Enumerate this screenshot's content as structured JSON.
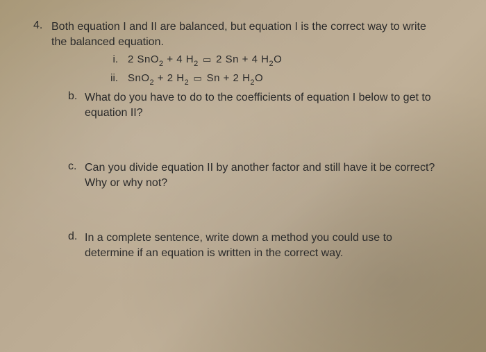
{
  "question": {
    "number": "4.",
    "intro": "Both equation I and II are balanced, but equation I is the correct way to write the balanced equation.",
    "equations": {
      "i": {
        "marker": "i.",
        "left_coef1": "2",
        "left_compound1": "SnO",
        "left_sub1": "2",
        "plus1": " + ",
        "left_coef2": "4",
        "left_compound2": "H",
        "left_sub2": "2",
        "right_coef1": "2",
        "right_compound1": "Sn",
        "plus2": " + ",
        "right_coef2": "4",
        "right_compound2": "H",
        "right_sub3": "2",
        "right_compound2b": "O"
      },
      "ii": {
        "marker": "ii.",
        "left_compound1": "SnO",
        "left_sub1": "2",
        "plus1": "  +  ",
        "left_coef2": "2",
        "left_compound2": "H",
        "left_sub2": "2",
        "right_compound1": "Sn",
        "plus2": " +  ",
        "right_coef2": "2",
        "right_compound2": "H",
        "right_sub3": "2",
        "right_compound2b": "O"
      }
    },
    "parts": {
      "b": {
        "marker": "b.",
        "text": "What do you have to do to the coefficients of equation I below to get to equation II?"
      },
      "c": {
        "marker": "c.",
        "text": "Can you divide equation II by another factor and still have it be correct?  Why or why not?"
      },
      "d": {
        "marker": "d.",
        "text": "In a complete sentence, write down a method you could use to determine if an equation is written in the correct way."
      }
    }
  }
}
